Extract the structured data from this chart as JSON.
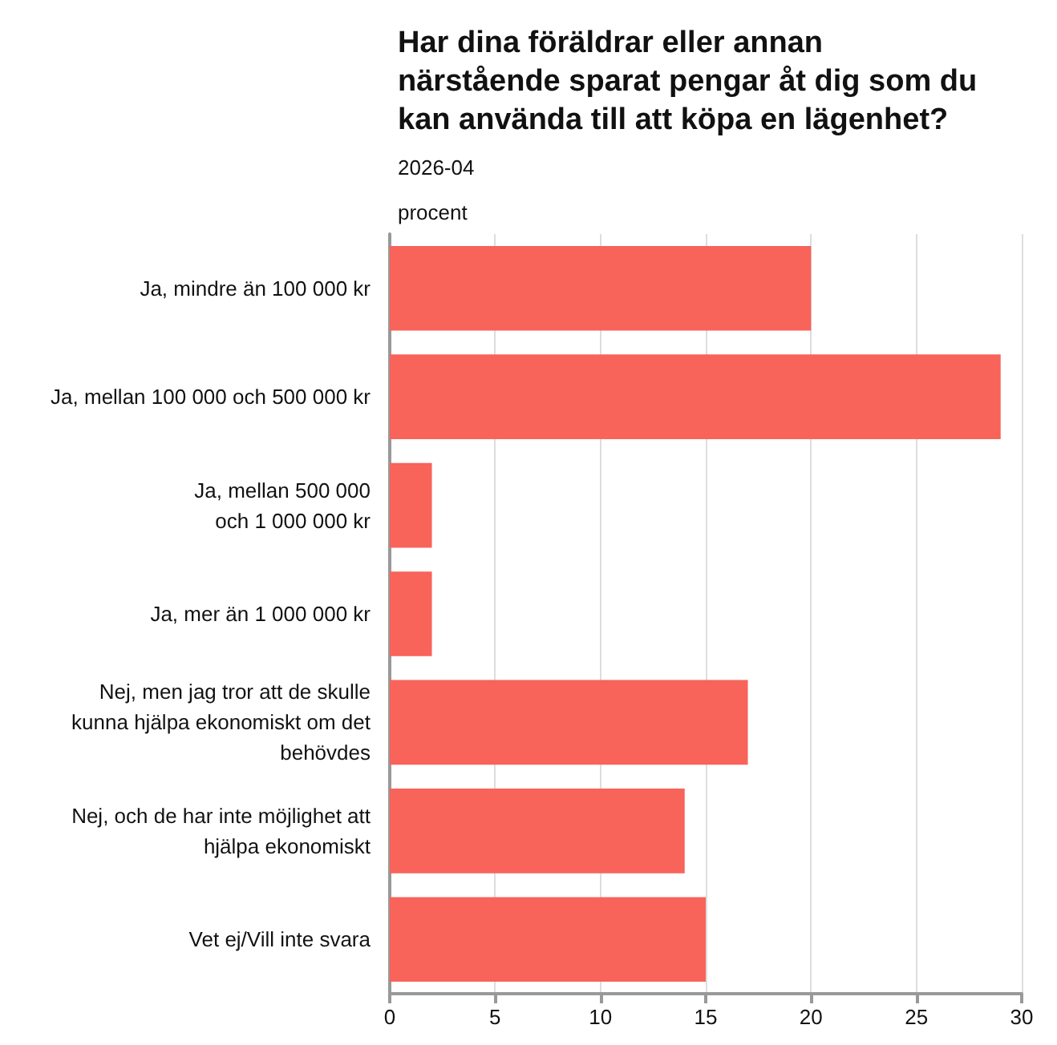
{
  "chart_data": {
    "type": "bar",
    "orientation": "horizontal",
    "title": "Har dina föräldrar eller annan närstående sparat pengar åt dig som du kan använda till att köpa en lägenhet?",
    "subtitle": "2026-04",
    "ylabel": "procent",
    "categories": [
      "Ja, mindre än 100 000 kr",
      "Ja, mellan 100 000 och 500 000 kr",
      "Ja, mellan 500 000\noch 1 000 000 kr",
      "Ja, mer än 1 000 000 kr",
      "Nej, men jag tror att de skulle\nkunna hjälpa ekonomiskt om det\nbehövdes",
      "Nej, och de har inte möjlighet att\nhjälpa ekonomiskt",
      "Vet ej/Vill inte svara"
    ],
    "values": [
      20,
      29,
      2,
      2,
      17,
      14,
      15
    ],
    "color": "#f8635a",
    "xlim": [
      0,
      30
    ],
    "xticks": [
      0,
      5,
      10,
      15,
      20,
      25,
      30
    ],
    "grid": "x"
  }
}
